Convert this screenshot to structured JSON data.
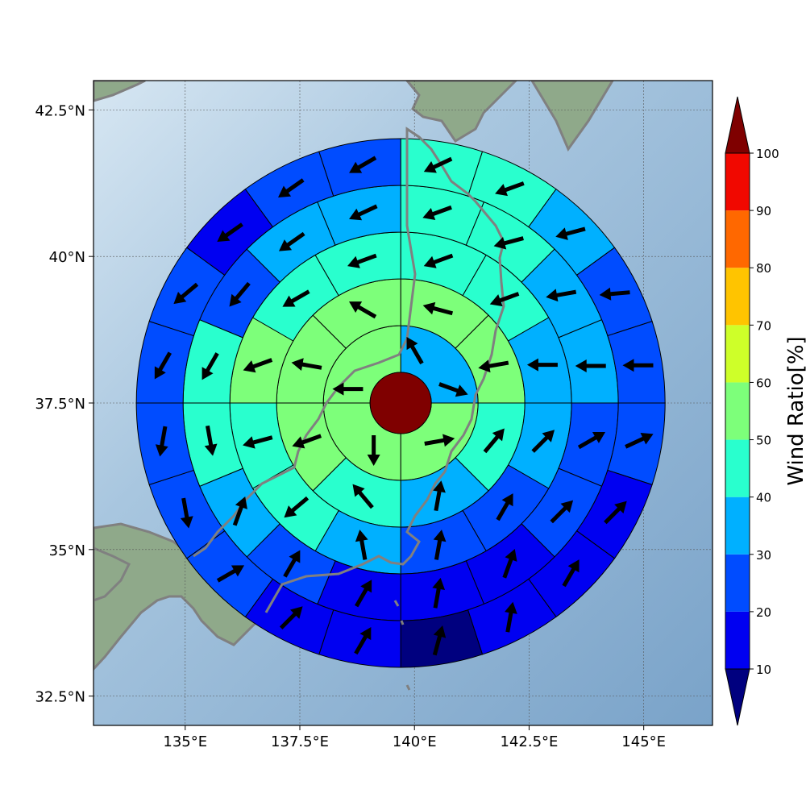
{
  "chart_data": {
    "type": "polar-sector-map",
    "colorbar": {
      "label": "Wind Ratio[%]",
      "ticks": [
        10,
        20,
        30,
        40,
        50,
        60,
        70,
        80,
        90,
        100
      ],
      "colors": [
        "#00007f",
        "#0000f1",
        "#004cff",
        "#00b0ff",
        "#29ffce",
        "#7dff7a",
        "#ceff29",
        "#ffc400",
        "#ff6800",
        "#f10800",
        "#7f0000"
      ]
    },
    "axes": {
      "lon_range": [
        133,
        146.5
      ],
      "lat_range": [
        32,
        43
      ],
      "x_ticks": [
        {
          "value": 135,
          "label": "135°E"
        },
        {
          "value": 137.5,
          "label": "137.5°E"
        },
        {
          "value": 140,
          "label": "140°E"
        },
        {
          "value": 142.5,
          "label": "142.5°E"
        },
        {
          "value": 145,
          "label": "145°E"
        }
      ],
      "y_ticks": [
        {
          "value": 32.5,
          "label": "32.5°N"
        },
        {
          "value": 35,
          "label": "35°N"
        },
        {
          "value": 37.5,
          "label": "37.5°N"
        },
        {
          "value": 40,
          "label": "40°N"
        },
        {
          "value": 42.5,
          "label": "42.5°N"
        }
      ],
      "grid": true
    },
    "center": {
      "lon": 139.7,
      "lat": 37.5,
      "value": 100
    },
    "rings": [
      {
        "sectors": 4,
        "start_deg": 90,
        "values": [
          35,
          55,
          55,
          55
        ]
      },
      {
        "sectors": 8,
        "start_deg": 90,
        "values": [
          55,
          55,
          45,
          35,
          45,
          55,
          55,
          55
        ]
      },
      {
        "sectors": 12,
        "start_deg": 90,
        "values": [
          45,
          45,
          35,
          35,
          25,
          25,
          35,
          45,
          45,
          55,
          45,
          45
        ]
      },
      {
        "sectors": 16,
        "start_deg": 90,
        "values": [
          45,
          45,
          35,
          35,
          25,
          25,
          15,
          15,
          15,
          25,
          35,
          45,
          45,
          25,
          35,
          35
        ]
      },
      {
        "sectors": 20,
        "start_deg": 90,
        "values": [
          45,
          45,
          35,
          25,
          25,
          25,
          15,
          15,
          15,
          5,
          15,
          15,
          25,
          25,
          25,
          25,
          25,
          15,
          25,
          25
        ]
      }
    ],
    "arrows": [
      [
        {
          "angle": 15,
          "deg": -20
        },
        {
          "angle": 75,
          "deg": 120
        },
        {
          "angle": 165,
          "deg": 180
        },
        {
          "angle": 240,
          "deg": -90
        },
        {
          "angle": 315,
          "deg": 10
        }
      ],
      [
        {
          "angle": 22,
          "deg": 190
        },
        {
          "angle": 68,
          "deg": 165
        },
        {
          "angle": 112,
          "deg": 150
        },
        {
          "angle": 158,
          "deg": 170
        },
        {
          "angle": 202,
          "deg": 200
        },
        {
          "angle": 248,
          "deg": 130
        },
        {
          "angle": 292,
          "deg": 80
        },
        {
          "angle": 338,
          "deg": 50
        }
      ],
      [
        {
          "angle": 15,
          "deg": 180
        },
        {
          "angle": 45,
          "deg": 200
        },
        {
          "angle": 75,
          "deg": 200
        },
        {
          "angle": 105,
          "deg": 200
        },
        {
          "angle": 135,
          "deg": 210
        },
        {
          "angle": 165,
          "deg": 200
        },
        {
          "angle": 195,
          "deg": 195
        },
        {
          "angle": 225,
          "deg": 220
        },
        {
          "angle": 255,
          "deg": 100
        },
        {
          "angle": 285,
          "deg": 80
        },
        {
          "angle": 315,
          "deg": 60
        },
        {
          "angle": 345,
          "deg": 45
        }
      ],
      [
        {
          "angle": 11,
          "deg": 180
        },
        {
          "angle": 34,
          "deg": 190
        },
        {
          "angle": 56,
          "deg": 195
        },
        {
          "angle": 79,
          "deg": 200
        },
        {
          "angle": 101,
          "deg": 205
        },
        {
          "angle": 124,
          "deg": 215
        },
        {
          "angle": 146,
          "deg": 230
        },
        {
          "angle": 169,
          "deg": 240
        },
        {
          "angle": 191,
          "deg": 280
        },
        {
          "angle": 214,
          "deg": 70
        },
        {
          "angle": 236,
          "deg": 60
        },
        {
          "angle": 259,
          "deg": 60
        },
        {
          "angle": 281,
          "deg": 80
        },
        {
          "angle": 304,
          "deg": 70
        },
        {
          "angle": 326,
          "deg": 45
        },
        {
          "angle": 349,
          "deg": 30
        }
      ],
      [
        {
          "angle": 9,
          "deg": 180
        },
        {
          "angle": 27,
          "deg": 185
        },
        {
          "angle": 45,
          "deg": 195
        },
        {
          "angle": 63,
          "deg": 200
        },
        {
          "angle": 81,
          "deg": 205
        },
        {
          "angle": 99,
          "deg": 210
        },
        {
          "angle": 117,
          "deg": 215
        },
        {
          "angle": 135,
          "deg": 215
        },
        {
          "angle": 153,
          "deg": 220
        },
        {
          "angle": 171,
          "deg": 240
        },
        {
          "angle": 189,
          "deg": 260
        },
        {
          "angle": 207,
          "deg": 280
        },
        {
          "angle": 225,
          "deg": 30
        },
        {
          "angle": 243,
          "deg": 45
        },
        {
          "angle": 261,
          "deg": 60
        },
        {
          "angle": 279,
          "deg": 75
        },
        {
          "angle": 297,
          "deg": 80
        },
        {
          "angle": 315,
          "deg": 60
        },
        {
          "angle": 333,
          "deg": 45
        },
        {
          "angle": 351,
          "deg": 25
        }
      ]
    ]
  }
}
